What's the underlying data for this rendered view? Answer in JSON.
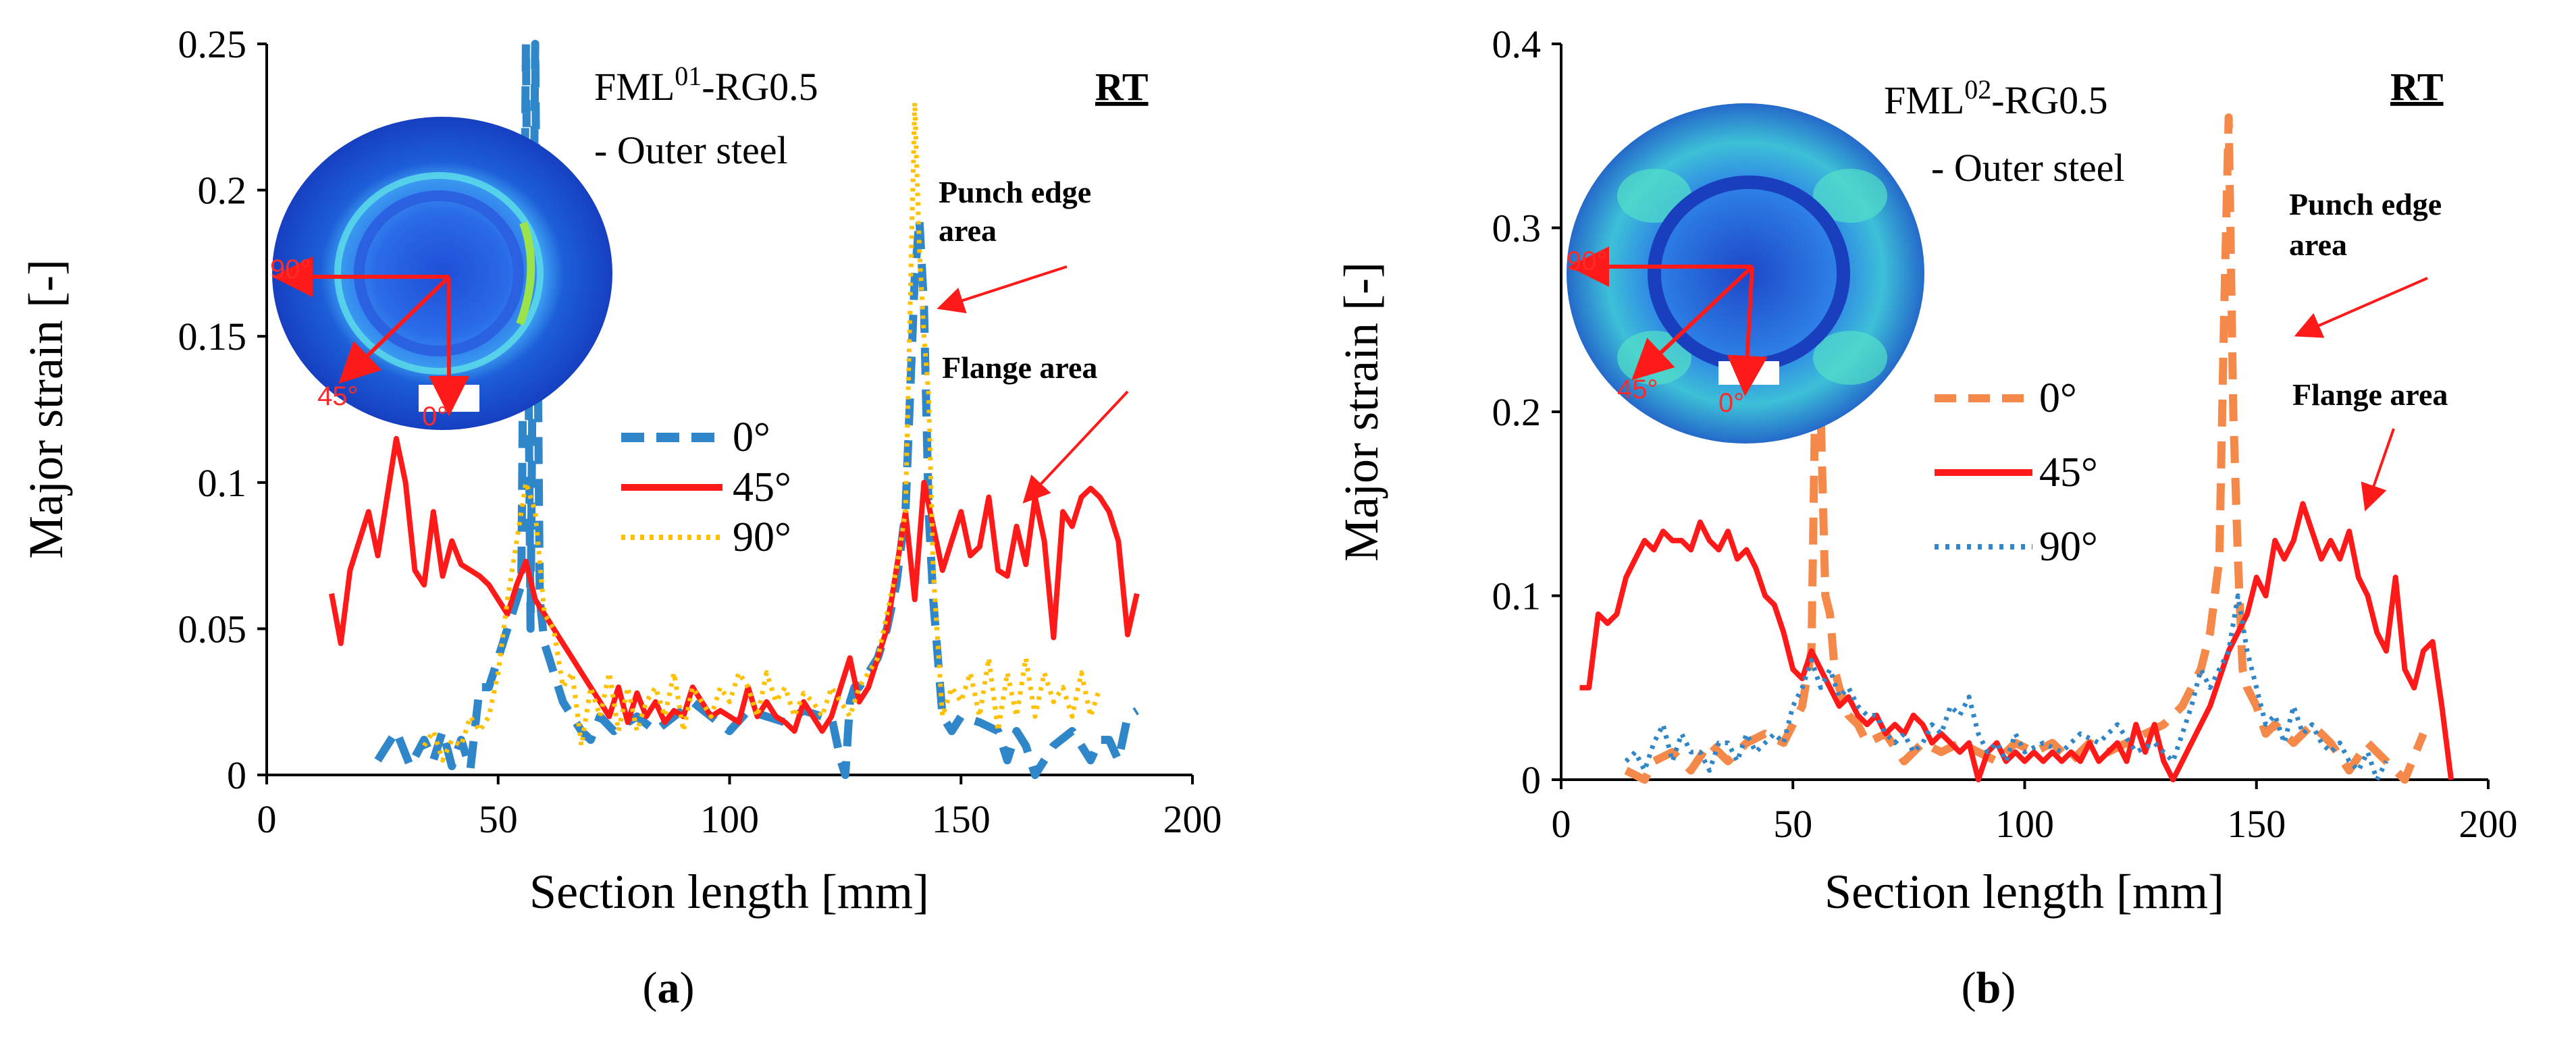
{
  "chart_data": [
    {
      "type": "line",
      "panel_label": "a",
      "title": "FML",
      "title_sup": "01",
      "title_rest": "-RG0.5",
      "subtitle": "- Outer steel",
      "condition": "RT",
      "xlabel": "Section length [mm]",
      "ylabel": "Major strain [-]",
      "xlim": [
        0,
        200
      ],
      "ylim": [
        0,
        0.25
      ],
      "xticks": [
        "0",
        "50",
        "100",
        "150",
        "200"
      ],
      "yticks": [
        "0",
        "0.05",
        "0.1",
        "0.15",
        "0.2",
        "0.25"
      ],
      "annotations": [
        {
          "text": "Punch edge",
          "text2": "area"
        },
        {
          "text": "Flange area"
        }
      ],
      "inset_labels": [
        "90°",
        "45°",
        "0°"
      ],
      "series": [
        {
          "name": "0°",
          "color": "#2f86c8",
          "dash": "dash",
          "x": [
            24,
            28,
            31,
            34,
            36,
            38,
            40,
            42,
            44,
            46,
            48,
            50,
            52,
            54,
            55,
            56,
            57,
            58,
            59,
            60,
            61,
            62,
            64,
            66,
            68,
            70,
            72,
            75,
            78,
            80,
            84,
            88,
            92,
            96,
            100,
            104,
            108,
            112,
            116,
            120,
            122,
            124,
            125,
            126,
            127,
            128,
            130,
            132,
            134,
            136,
            138,
            140,
            141,
            142,
            143,
            144,
            146,
            148,
            150,
            154,
            158,
            160,
            162,
            164,
            166,
            170,
            174,
            178,
            180,
            182,
            184,
            186,
            188
          ],
          "y": [
            0.005,
            0.015,
            0.003,
            0.012,
            0.005,
            0.015,
            0.003,
            0.012,
            0.002,
            0.03,
            0.03,
            0.04,
            0.05,
            0.06,
            0.065,
            0.25,
            0.05,
            0.25,
            0.06,
            0.045,
            0.04,
            0.035,
            0.025,
            0.02,
            0.015,
            0.012,
            0.02,
            0.015,
            0.018,
            0.02,
            0.015,
            0.02,
            0.025,
            0.02,
            0.015,
            0.022,
            0.02,
            0.018,
            0.022,
            0.02,
            0.02,
            0.005,
            0,
            0.025,
            0.03,
            0.03,
            0.035,
            0.04,
            0.05,
            0.065,
            0.09,
            0.17,
            0.19,
            0.16,
            0.09,
            0.06,
            0.02,
            0.015,
            0.02,
            0.018,
            0.015,
            0.005,
            0.015,
            0.01,
            0,
            0.01,
            0.015,
            0.005,
            0.012,
            0.012,
            0.005,
            0.02,
            0.022
          ]
        },
        {
          "name": "45°",
          "color": "#ff1a1a",
          "dash": "solid",
          "x": [
            14,
            16,
            18,
            20,
            22,
            24,
            26,
            28,
            30,
            32,
            34,
            36,
            38,
            40,
            42,
            44,
            46,
            48,
            50,
            52,
            54,
            56,
            58,
            60,
            62,
            64,
            66,
            68,
            70,
            72,
            74,
            76,
            78,
            80,
            82,
            84,
            86,
            88,
            90,
            92,
            94,
            96,
            98,
            100,
            102,
            104,
            106,
            108,
            110,
            112,
            114,
            116,
            118,
            120,
            122,
            124,
            126,
            128,
            130,
            132,
            134,
            136,
            138,
            140,
            142,
            144,
            146,
            148,
            150,
            152,
            154,
            156,
            158,
            160,
            162,
            164,
            166,
            168,
            170,
            172,
            174,
            176,
            178,
            180,
            182,
            184,
            186,
            188
          ],
          "y": [
            0.062,
            0.045,
            0.07,
            0.08,
            0.09,
            0.075,
            0.095,
            0.115,
            0.1,
            0.07,
            0.065,
            0.09,
            0.068,
            0.08,
            0.072,
            0.07,
            0.068,
            0.065,
            0.06,
            0.055,
            0.065,
            0.073,
            0.06,
            0.055,
            0.05,
            0.045,
            0.04,
            0.035,
            0.03,
            0.025,
            0.02,
            0.03,
            0.018,
            0.028,
            0.02,
            0.025,
            0.018,
            0.022,
            0.02,
            0.03,
            0.025,
            0.02,
            0.022,
            0.02,
            0.018,
            0.03,
            0.02,
            0.025,
            0.02,
            0.018,
            0.015,
            0.025,
            0.02,
            0.015,
            0.02,
            0.03,
            0.04,
            0.025,
            0.03,
            0.04,
            0.05,
            0.07,
            0.09,
            0.06,
            0.1,
            0.085,
            0.07,
            0.08,
            0.09,
            0.075,
            0.078,
            0.095,
            0.07,
            0.068,
            0.085,
            0.072,
            0.095,
            0.08,
            0.047,
            0.09,
            0.085,
            0.095,
            0.098,
            0.095,
            0.09,
            0.08,
            0.048,
            0.062
          ]
        },
        {
          "name": "90°",
          "color": "#ffc000",
          "dash": "dot",
          "x": [
            34,
            36,
            38,
            40,
            42,
            44,
            46,
            48,
            50,
            52,
            54,
            56,
            58,
            60,
            62,
            64,
            66,
            68,
            70,
            72,
            74,
            76,
            78,
            80,
            82,
            84,
            86,
            88,
            90,
            92,
            94,
            96,
            98,
            100,
            102,
            104,
            106,
            108,
            110,
            112,
            114,
            116,
            118,
            120,
            122,
            124,
            126,
            128,
            130,
            132,
            134,
            136,
            138,
            140,
            141,
            142,
            143,
            144,
            146,
            148,
            150,
            152,
            154,
            156,
            158,
            160,
            162,
            164,
            166,
            168,
            170,
            172,
            174,
            176,
            178,
            180
          ],
          "y": [
            0.01,
            0.015,
            0.005,
            0.012,
            0.01,
            0.02,
            0.015,
            0.02,
            0.035,
            0.06,
            0.08,
            0.1,
            0.09,
            0.055,
            0.05,
            0.03,
            0.035,
            0.01,
            0.03,
            0.02,
            0.035,
            0.015,
            0.03,
            0.015,
            0.025,
            0.03,
            0.02,
            0.035,
            0.015,
            0.03,
            0.025,
            0.02,
            0.03,
            0.025,
            0.035,
            0.03,
            0.02,
            0.035,
            0.025,
            0.03,
            0.02,
            0.028,
            0.025,
            0.02,
            0.03,
            0.025,
            0.02,
            0.03,
            0.035,
            0.04,
            0.055,
            0.07,
            0.09,
            0.23,
            0.18,
            0.15,
            0.13,
            0.07,
            0.02,
            0.03,
            0.025,
            0.035,
            0.02,
            0.04,
            0.015,
            0.035,
            0.02,
            0.04,
            0.02,
            0.035,
            0.025,
            0.03,
            0.02,
            0.035,
            0.02,
            0.03
          ]
        }
      ]
    },
    {
      "type": "line",
      "panel_label": "b",
      "title": "FML",
      "title_sup": "02",
      "title_rest": "-RG0.5",
      "subtitle": "- Outer steel",
      "condition": "RT",
      "xlabel": "Section length [mm]",
      "ylabel": "Major strain [-]",
      "xlim": [
        0,
        200
      ],
      "ylim": [
        0,
        0.4
      ],
      "xticks": [
        "0",
        "50",
        "100",
        "150",
        "200"
      ],
      "yticks": [
        "0",
        "0.1",
        "0.2",
        "0.3",
        "0.4"
      ],
      "annotations": [
        {
          "text": "Punch edge",
          "text2": "area"
        },
        {
          "text": "Flange area"
        }
      ],
      "inset_labels": [
        "90°",
        "45°",
        "0°"
      ],
      "series": [
        {
          "name": "0°",
          "color": "#f4894a",
          "dash": "dash",
          "x": [
            14,
            18,
            20,
            24,
            28,
            32,
            36,
            40,
            44,
            48,
            52,
            54,
            55,
            56,
            57,
            58,
            59,
            60,
            62,
            64,
            66,
            70,
            74,
            78,
            82,
            86,
            90,
            94,
            98,
            102,
            106,
            110,
            114,
            118,
            122,
            126,
            130,
            134,
            136,
            138,
            140,
            142,
            143,
            144,
            145,
            146,
            147,
            148,
            150,
            152,
            154,
            158,
            162,
            166,
            170,
            174,
            178,
            182,
            186
          ],
          "y": [
            0.005,
            0.0,
            0.01,
            0.015,
            0.005,
            0.02,
            0.01,
            0.02,
            0.025,
            0.02,
            0.04,
            0.07,
            0.24,
            0.2,
            0.1,
            0.09,
            0.06,
            0.05,
            0.035,
            0.03,
            0.02,
            0.025,
            0.01,
            0.02,
            0.015,
            0.02,
            0.015,
            0.01,
            0.02,
            0.015,
            0.02,
            0.01,
            0.02,
            0.015,
            0.02,
            0.025,
            0.03,
            0.04,
            0.05,
            0.06,
            0.08,
            0.12,
            0.25,
            0.36,
            0.2,
            0.12,
            0.06,
            0.05,
            0.04,
            0.025,
            0.03,
            0.02,
            0.03,
            0.02,
            0.005,
            0.02,
            0.01,
            0.0,
            0.025
          ]
        },
        {
          "name": "45°",
          "color": "#ff1a1a",
          "dash": "solid",
          "x": [
            4,
            6,
            8,
            10,
            12,
            14,
            16,
            18,
            20,
            22,
            24,
            26,
            28,
            30,
            32,
            34,
            36,
            38,
            40,
            42,
            44,
            46,
            48,
            50,
            52,
            54,
            56,
            58,
            60,
            62,
            64,
            66,
            68,
            70,
            72,
            74,
            76,
            78,
            80,
            82,
            84,
            86,
            88,
            90,
            92,
            94,
            96,
            98,
            100,
            102,
            104,
            106,
            108,
            110,
            112,
            114,
            116,
            118,
            120,
            122,
            124,
            126,
            128,
            130,
            132,
            136,
            140,
            144,
            148,
            150,
            152,
            154,
            156,
            158,
            160,
            162,
            164,
            166,
            168,
            170,
            172,
            174,
            176,
            178,
            180,
            182,
            184,
            186,
            188,
            190,
            192
          ],
          "y": [
            0.05,
            0.05,
            0.09,
            0.085,
            0.09,
            0.11,
            0.12,
            0.13,
            0.125,
            0.135,
            0.13,
            0.13,
            0.125,
            0.14,
            0.13,
            0.125,
            0.135,
            0.12,
            0.125,
            0.115,
            0.1,
            0.095,
            0.08,
            0.06,
            0.055,
            0.07,
            0.06,
            0.05,
            0.04,
            0.045,
            0.035,
            0.03,
            0.035,
            0.025,
            0.03,
            0.025,
            0.035,
            0.03,
            0.02,
            0.025,
            0.02,
            0.015,
            0.02,
            0.0,
            0.015,
            0.02,
            0.01,
            0.015,
            0.01,
            0.015,
            0.01,
            0.015,
            0.01,
            0.015,
            0.01,
            0.02,
            0.01,
            0.015,
            0.02,
            0.01,
            0.03,
            0.015,
            0.03,
            0.01,
            0.0,
            0.02,
            0.04,
            0.07,
            0.09,
            0.11,
            0.1,
            0.13,
            0.12,
            0.13,
            0.15,
            0.135,
            0.12,
            0.13,
            0.12,
            0.135,
            0.11,
            0.1,
            0.08,
            0.07,
            0.11,
            0.06,
            0.05,
            0.07,
            0.075,
            0.04,
            0.0
          ]
        },
        {
          "name": "90°",
          "color": "#2f86c8",
          "dash": "dot",
          "x": [
            14,
            16,
            18,
            20,
            22,
            24,
            26,
            28,
            30,
            32,
            34,
            36,
            38,
            40,
            42,
            44,
            46,
            48,
            50,
            52,
            54,
            56,
            58,
            60,
            62,
            64,
            66,
            68,
            70,
            72,
            74,
            76,
            78,
            80,
            82,
            84,
            86,
            88,
            90,
            92,
            94,
            96,
            98,
            100,
            104,
            108,
            112,
            116,
            120,
            124,
            128,
            132,
            136,
            138,
            140,
            142,
            144,
            146,
            148,
            150,
            152,
            154,
            156,
            158,
            160,
            162,
            164,
            166,
            168,
            170,
            172,
            174,
            176,
            178
          ],
          "y": [
            0.01,
            0.015,
            0.005,
            0.02,
            0.03,
            0.01,
            0.025,
            0.015,
            0.015,
            0.005,
            0.02,
            0.02,
            0.01,
            0.025,
            0.015,
            0.02,
            0.025,
            0.02,
            0.04,
            0.05,
            0.065,
            0.05,
            0.06,
            0.045,
            0.05,
            0.04,
            0.035,
            0.035,
            0.025,
            0.02,
            0.025,
            0.015,
            0.02,
            0.03,
            0.025,
            0.04,
            0.035,
            0.045,
            0.025,
            0.015,
            0.02,
            0.01,
            0.025,
            0.015,
            0.02,
            0.015,
            0.025,
            0.02,
            0.03,
            0.015,
            0.02,
            0.01,
            0.04,
            0.06,
            0.05,
            0.06,
            0.07,
            0.1,
            0.07,
            0.05,
            0.03,
            0.035,
            0.02,
            0.04,
            0.025,
            0.03,
            0.02,
            0.015,
            0.02,
            0.01,
            0.005,
            0.015,
            0.0,
            0.01
          ]
        }
      ]
    }
  ]
}
